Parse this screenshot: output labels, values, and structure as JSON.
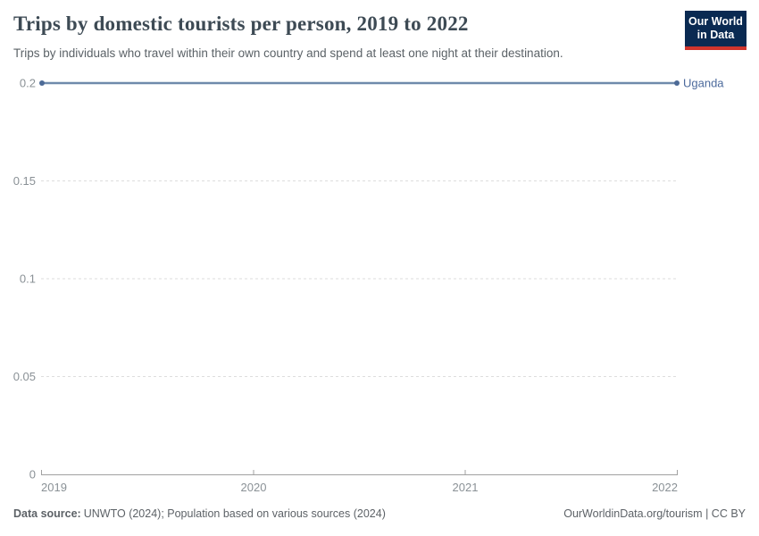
{
  "header": {
    "title": "Trips by domestic tourists per person, 2019 to 2022",
    "subtitle": "Trips by individuals who travel within their own country and spend at least one night at their destination."
  },
  "logo": {
    "line1": "Our World",
    "line2": "in Data"
  },
  "footer": {
    "data_source_label": "Data source:",
    "data_source_text": "UNWTO (2024); Population based on various sources (2024)",
    "credit": "OurWorldinData.org/tourism | CC BY"
  },
  "colors": {
    "line": "#6f8aab",
    "dot": "#4c6a96",
    "entity_label": "#4c6a9c",
    "grid": "#dddddd",
    "axis": "#a1a1a1",
    "tick_text": "#8a9196",
    "logo_bg": "#0a2a52",
    "logo_stripe": "#d0342c"
  },
  "chart_data": {
    "type": "line",
    "title": "Trips by domestic tourists per person, 2019 to 2022",
    "subtitle": "Trips by individuals who travel within their own country and spend at least one night at their destination.",
    "x": [
      2019,
      2020,
      2021,
      2022
    ],
    "series": [
      {
        "name": "Uganda",
        "values": [
          0.2,
          0.2,
          0.2,
          0.2
        ]
      }
    ],
    "ylim": [
      0,
      0.2
    ],
    "yticks": [
      0,
      0.05,
      0.1,
      0.15,
      0.2
    ],
    "ytick_labels": [
      "0",
      "0.05",
      "0.1",
      "0.15",
      "0.2"
    ],
    "xticks": [
      2019,
      2020,
      2021,
      2022
    ],
    "xtick_labels": [
      "2019",
      "2020",
      "2021",
      "2022"
    ],
    "grid": "horizontal-dashed",
    "legend_position": "end-of-line"
  }
}
